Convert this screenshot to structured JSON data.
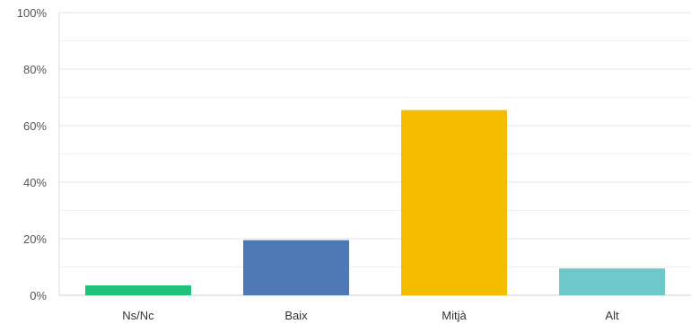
{
  "chart_data": {
    "type": "bar",
    "categories": [
      "Ns/Nc",
      "Baix",
      "Mitjà",
      "Alt"
    ],
    "values": [
      3.5,
      19.5,
      65.5,
      9.5
    ],
    "colors": [
      "#1ec27a",
      "#4f79b5",
      "#f5bd00",
      "#6cc8c9"
    ],
    "ylim": [
      0,
      100
    ],
    "yticks": [
      0,
      20,
      40,
      60,
      80,
      100
    ],
    "ytick_labels": [
      "0%",
      "20%",
      "40%",
      "60%",
      "80%",
      "100%"
    ],
    "grid": true,
    "title": "",
    "xlabel": "",
    "ylabel": ""
  }
}
